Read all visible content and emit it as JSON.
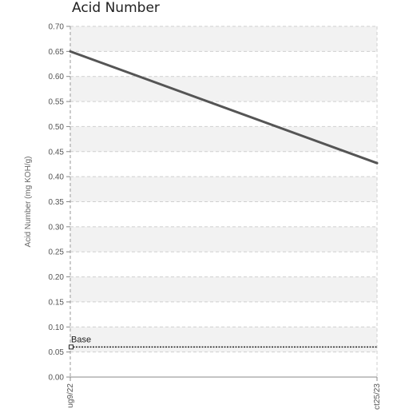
{
  "chart_data": {
    "type": "line",
    "title": "Acid Number",
    "ylabel": "Acid Number (mg KOH/g)",
    "xlabel": "",
    "x": [
      "ug9/22",
      "ct25/23"
    ],
    "series": [
      {
        "values": [
          0.65,
          0.427
        ],
        "color": "#555555"
      }
    ],
    "reference_lines": [
      {
        "label": "Base",
        "value": 0.06
      }
    ],
    "ylim": [
      0.0,
      0.7
    ],
    "yticks": [
      "0.70",
      "0.65",
      "0.60",
      "0.55",
      "0.50",
      "0.45",
      "0.40",
      "0.35",
      "0.30",
      "0.25",
      "0.20",
      "0.15",
      "0.10",
      "0.05",
      "0.00"
    ],
    "grid": true,
    "band_color": "#f2f2f2",
    "legend": "none"
  }
}
